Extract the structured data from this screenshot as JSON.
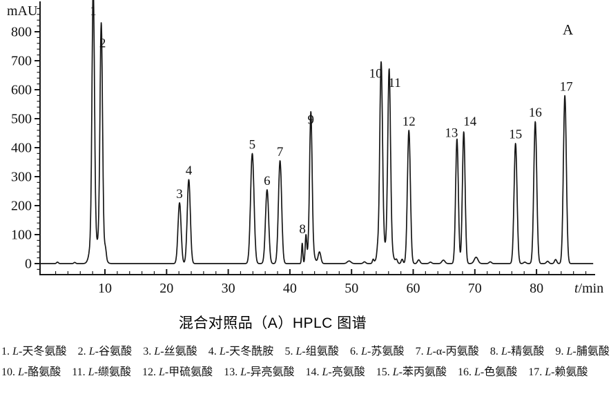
{
  "caption": "混合对照品（A）HPLC 图谱",
  "corner_label": "A",
  "chart_data": {
    "type": "line",
    "title": "混合对照品（A）HPLC 图谱",
    "xlabel": "t/min",
    "ylabel": "mAU",
    "xlim": [
      0,
      89
    ],
    "ylim": [
      0,
      860
    ],
    "x_major_ticks": [
      10,
      20,
      30,
      40,
      50,
      60,
      70,
      80
    ],
    "x_minor_step": 2,
    "y_major_ticks": [
      0,
      100,
      200,
      300,
      400,
      500,
      600,
      700,
      800
    ],
    "y_minor_step": 20,
    "grid": false,
    "line_color": "#161616",
    "peaks": [
      {
        "num": 1,
        "t": 8.1,
        "mAU": 840,
        "sigma": 0.2
      },
      {
        "num": 2,
        "t": 9.4,
        "mAU": 730,
        "sigma": 0.2,
        "label_dx": 2
      },
      {
        "num": 3,
        "t": 22.1,
        "mAU": 210,
        "sigma": 0.25
      },
      {
        "num": 4,
        "t": 23.6,
        "mAU": 290,
        "sigma": 0.25
      },
      {
        "num": 5,
        "t": 33.9,
        "mAU": 380,
        "sigma": 0.28
      },
      {
        "num": 6,
        "t": 36.3,
        "mAU": 255,
        "sigma": 0.26
      },
      {
        "num": 7,
        "t": 38.4,
        "mAU": 355,
        "sigma": 0.26
      },
      {
        "num": 8,
        "t": 42.6,
        "mAU": 88,
        "sigma": 0.12,
        "label_dx": -5
      },
      {
        "num": 9,
        "t": 43.4,
        "mAU": 465,
        "sigma": 0.2
      },
      {
        "num": 10,
        "t": 54.8,
        "mAU": 625,
        "sigma": 0.22,
        "label_dx": -8
      },
      {
        "num": 11,
        "t": 56.1,
        "mAU": 605,
        "sigma": 0.22,
        "label_dx": 8,
        "label_dy": 5
      },
      {
        "num": 12,
        "t": 59.3,
        "mAU": 460,
        "sigma": 0.24
      },
      {
        "num": 13,
        "t": 67.1,
        "mAU": 430,
        "sigma": 0.22,
        "label_dx": -8,
        "label_dy": 4
      },
      {
        "num": 14,
        "t": 68.2,
        "mAU": 455,
        "sigma": 0.22,
        "label_dx": 9,
        "label_dy": -2
      },
      {
        "num": 15,
        "t": 76.6,
        "mAU": 415,
        "sigma": 0.24
      },
      {
        "num": 16,
        "t": 79.8,
        "mAU": 490,
        "sigma": 0.24
      },
      {
        "num": 17,
        "t": 84.6,
        "mAU": 580,
        "sigma": 0.24,
        "label_dx": 2
      }
    ],
    "minor_features": [
      {
        "t": 2.3,
        "mAU": 5,
        "sigma": 0.15
      },
      {
        "t": 5.1,
        "mAU": 4,
        "sigma": 0.15
      },
      {
        "t": 8.1,
        "mAU": 115,
        "sigma": 0.45
      },
      {
        "t": 9.4,
        "mAU": 100,
        "sigma": 0.45
      },
      {
        "t": 10.1,
        "mAU": 26,
        "sigma": 0.13
      },
      {
        "t": 42.0,
        "mAU": 70,
        "sigma": 0.1
      },
      {
        "t": 43.4,
        "mAU": 60,
        "sigma": 0.45
      },
      {
        "t": 44.8,
        "mAU": 40,
        "sigma": 0.22
      },
      {
        "t": 49.6,
        "mAU": 9,
        "sigma": 0.3
      },
      {
        "t": 52.1,
        "mAU": 6,
        "sigma": 0.2
      },
      {
        "t": 53.5,
        "mAU": 13,
        "sigma": 0.12
      },
      {
        "t": 54.2,
        "mAU": 18,
        "sigma": 0.1
      },
      {
        "t": 54.8,
        "mAU": 70,
        "sigma": 0.5
      },
      {
        "t": 56.1,
        "mAU": 65,
        "sigma": 0.5
      },
      {
        "t": 57.3,
        "mAU": 12,
        "sigma": 0.15
      },
      {
        "t": 58.2,
        "mAU": 15,
        "sigma": 0.15
      },
      {
        "t": 60.9,
        "mAU": 13,
        "sigma": 0.2
      },
      {
        "t": 62.8,
        "mAU": 5,
        "sigma": 0.2
      },
      {
        "t": 64.9,
        "mAU": 12,
        "sigma": 0.25
      },
      {
        "t": 70.2,
        "mAU": 22,
        "sigma": 0.3
      },
      {
        "t": 72.5,
        "mAU": 6,
        "sigma": 0.2
      },
      {
        "t": 78.1,
        "mAU": 5,
        "sigma": 0.2
      },
      {
        "t": 81.8,
        "mAU": 8,
        "sigma": 0.2
      },
      {
        "t": 83.1,
        "mAU": 14,
        "sigma": 0.18
      }
    ]
  },
  "legend": {
    "items": [
      {
        "num": 1,
        "name": "L-天冬氨酸"
      },
      {
        "num": 2,
        "name": "L-谷氨酸"
      },
      {
        "num": 3,
        "name": "L-丝氨酸"
      },
      {
        "num": 4,
        "name": "L-天冬酰胺"
      },
      {
        "num": 5,
        "name": "L-组氨酸"
      },
      {
        "num": 6,
        "name": "L-苏氨酸"
      },
      {
        "num": 7,
        "name": "L-α-丙氨酸"
      },
      {
        "num": 8,
        "name": "L-精氨酸"
      },
      {
        "num": 9,
        "name": "L-脯氨酸"
      },
      {
        "num": 10,
        "name": "L-酪氨酸"
      },
      {
        "num": 11,
        "name": "L-缬氨酸"
      },
      {
        "num": 12,
        "name": "L-甲硫氨酸"
      },
      {
        "num": 13,
        "name": "L-异亮氨酸"
      },
      {
        "num": 14,
        "name": "L-亮氨酸"
      },
      {
        "num": 15,
        "name": "L-苯丙氨酸"
      },
      {
        "num": 16,
        "name": "L-色氨酸"
      },
      {
        "num": 17,
        "name": "L-赖氨酸"
      }
    ]
  }
}
